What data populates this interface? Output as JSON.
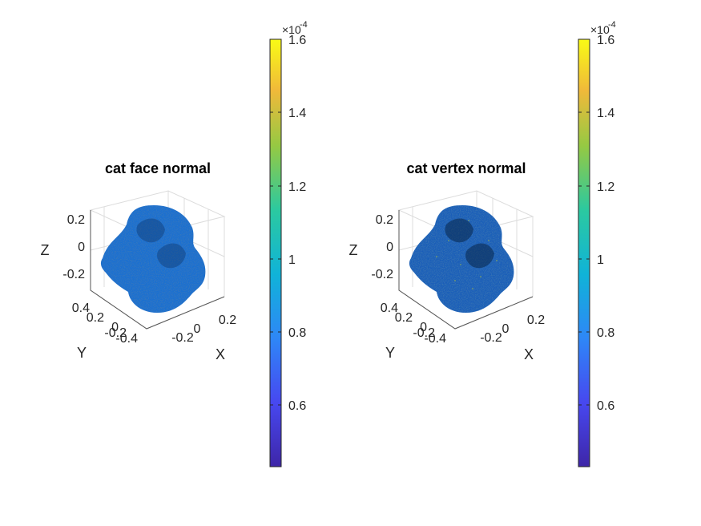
{
  "chart_data": [
    {
      "type": "scatter3d",
      "title": "cat face normal",
      "xlabel": "X",
      "ylabel": "Y",
      "zlabel": "Z",
      "x_ticks": [
        "-0.2",
        "0",
        "0.2"
      ],
      "y_ticks": [
        "-0.4",
        "-0.2",
        "0",
        "0.2",
        "0.4"
      ],
      "z_ticks": [
        "0.2",
        "0",
        "-0.2"
      ],
      "grid": true,
      "colormap": "parula",
      "colorbar": {
        "exponent_label": "×10",
        "exponent": "-4",
        "ticks": [
          "1.6",
          "1.4",
          "1.2",
          "1",
          "0.8",
          "0.6"
        ],
        "range": [
          0.42,
          1.62
        ]
      },
      "dominant_value": 0.8,
      "point_color": "#1f6fd0"
    },
    {
      "type": "scatter3d",
      "title": "cat vertex normal",
      "xlabel": "X",
      "ylabel": "Y",
      "zlabel": "Z",
      "x_ticks": [
        "-0.2",
        "0",
        "0.2"
      ],
      "y_ticks": [
        "-0.4",
        "-0.2",
        "0",
        "0.2",
        "0.4"
      ],
      "z_ticks": [
        "0.2",
        "0",
        "-0.2"
      ],
      "grid": true,
      "colormap": "parula",
      "colorbar": {
        "exponent_label": "×10",
        "exponent": "-4",
        "ticks": [
          "1.6",
          "1.4",
          "1.2",
          "1",
          "0.8",
          "0.6"
        ],
        "range": [
          0.42,
          1.62
        ]
      },
      "dominant_value": 0.8,
      "point_color": "#1a5fb8"
    }
  ]
}
